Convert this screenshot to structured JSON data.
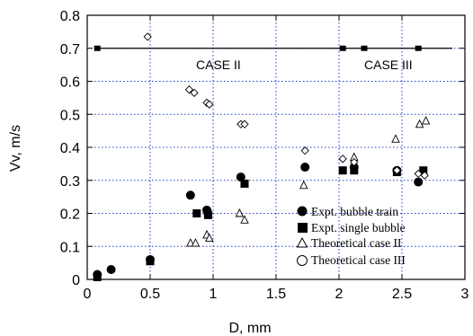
{
  "chart_data": {
    "type": "scatter",
    "xlabel": "D, mm",
    "ylabel": "Vv, m/s",
    "xlim": [
      0,
      3
    ],
    "ylim": [
      0,
      0.8
    ],
    "x_ticks": [
      "0",
      "0.5",
      "1",
      "1.5",
      "2",
      "2.5",
      "3"
    ],
    "y_ticks": [
      "0",
      "0.1",
      "0.2",
      "0.3",
      "0.4",
      "0.5",
      "0.6",
      "0.7",
      "0.8"
    ],
    "grid": true,
    "legend_position": "lower-right",
    "annotations": [
      "CASE II",
      "CASE III"
    ],
    "series": [
      {
        "name": "Expt. bubble train",
        "marker": "filled-circle",
        "points": [
          {
            "x": 0.08,
            "y": 0.015
          },
          {
            "x": 0.19,
            "y": 0.03
          },
          {
            "x": 0.5,
            "y": 0.06
          },
          {
            "x": 0.82,
            "y": 0.255
          },
          {
            "x": 0.95,
            "y": 0.21
          },
          {
            "x": 0.96,
            "y": 0.2
          },
          {
            "x": 1.22,
            "y": 0.31
          },
          {
            "x": 1.73,
            "y": 0.34
          },
          {
            "x": 2.12,
            "y": 0.34
          },
          {
            "x": 2.46,
            "y": 0.33
          },
          {
            "x": 2.63,
            "y": 0.295
          }
        ]
      },
      {
        "name": "Expt. single bubble",
        "marker": "filled-square",
        "points": [
          {
            "x": 0.08,
            "y": 0.007
          },
          {
            "x": 0.5,
            "y": 0.055
          },
          {
            "x": 0.87,
            "y": 0.2
          },
          {
            "x": 0.96,
            "y": 0.195
          },
          {
            "x": 1.25,
            "y": 0.29
          },
          {
            "x": 2.03,
            "y": 0.33
          },
          {
            "x": 2.12,
            "y": 0.33
          },
          {
            "x": 2.46,
            "y": 0.325
          },
          {
            "x": 2.67,
            "y": 0.33
          }
        ]
      },
      {
        "name": "Theoretical case II",
        "marker": "open-triangle",
        "points": [
          {
            "x": 0.82,
            "y": 0.11
          },
          {
            "x": 0.86,
            "y": 0.11
          },
          {
            "x": 0.95,
            "y": 0.135
          },
          {
            "x": 0.97,
            "y": 0.125
          },
          {
            "x": 1.21,
            "y": 0.2
          },
          {
            "x": 1.25,
            "y": 0.18
          },
          {
            "x": 1.72,
            "y": 0.285
          },
          {
            "x": 2.12,
            "y": 0.37
          },
          {
            "x": 2.45,
            "y": 0.425
          },
          {
            "x": 2.64,
            "y": 0.47
          },
          {
            "x": 2.69,
            "y": 0.48
          }
        ]
      },
      {
        "name": "Theoretical case III",
        "marker": "open-diamond",
        "points": [
          {
            "x": 0.48,
            "y": 0.735
          },
          {
            "x": 0.81,
            "y": 0.575
          },
          {
            "x": 0.85,
            "y": 0.565
          },
          {
            "x": 0.95,
            "y": 0.535
          },
          {
            "x": 0.97,
            "y": 0.53
          },
          {
            "x": 1.22,
            "y": 0.47
          },
          {
            "x": 1.25,
            "y": 0.47
          },
          {
            "x": 1.73,
            "y": 0.39
          },
          {
            "x": 2.03,
            "y": 0.365
          },
          {
            "x": 2.12,
            "y": 0.355
          },
          {
            "x": 2.46,
            "y": 0.33
          },
          {
            "x": 2.63,
            "y": 0.32
          },
          {
            "x": 2.68,
            "y": 0.315
          }
        ]
      },
      {
        "name": "",
        "marker": "line-with-squares",
        "points": [
          {
            "x": 0.08,
            "y": 0.7
          },
          {
            "x": 2.03,
            "y": 0.7
          },
          {
            "x": 2.2,
            "y": 0.7
          },
          {
            "x": 2.63,
            "y": 0.7
          },
          {
            "x": 2.9,
            "y": 0.7
          }
        ]
      }
    ]
  }
}
